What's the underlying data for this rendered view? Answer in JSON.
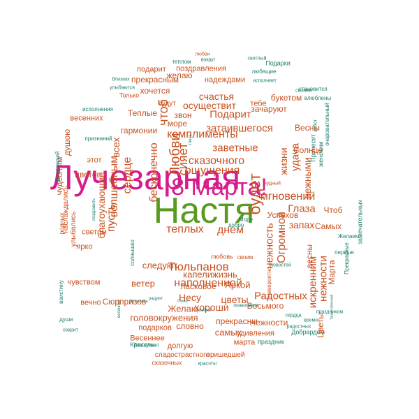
{
  "colors": {
    "orange": "#c8501e",
    "teal": "#1e7f6e",
    "magenta": "#d81b8c",
    "green": "#5a9a1e"
  },
  "cloud": {
    "words": [
      {
        "text": "Настя",
        "color": "green",
        "weight": 1.0
      },
      {
        "text": "Лучезарная",
        "color": "magenta",
        "weight": 0.92
      },
      {
        "text": "8 Марта!",
        "color": "magenta",
        "weight": 0.72
      },
      {
        "text": "Тюльпанов",
        "color": "orange",
        "weight": 0.4
      },
      {
        "text": "мгновений",
        "color": "orange",
        "weight": 0.38
      },
      {
        "text": "комплименты",
        "color": "orange",
        "weight": 0.36
      },
      {
        "text": "ощущения",
        "color": "orange",
        "weight": 0.36
      },
      {
        "text": "наполненной",
        "color": "orange",
        "weight": 0.34
      },
      {
        "text": "теплых",
        "color": "orange",
        "weight": 0.36
      },
      {
        "text": "днем",
        "color": "orange",
        "weight": 0.34
      },
      {
        "text": "сказочного",
        "color": "orange",
        "weight": 0.34
      },
      {
        "text": "заветные",
        "color": "orange",
        "weight": 0.34
      },
      {
        "text": "Подарит",
        "color": "orange",
        "weight": 0.32
      },
      {
        "text": "затаившегося",
        "color": "orange",
        "weight": 0.32
      },
      {
        "text": "осуществит",
        "color": "orange",
        "weight": 0.32
      },
      {
        "text": "счастья",
        "color": "orange",
        "weight": 0.32
      },
      {
        "text": "Глаза",
        "color": "orange",
        "weight": 0.32
      },
      {
        "text": "запах",
        "color": "orange",
        "weight": 0.3
      },
      {
        "text": "Радостных",
        "color": "orange",
        "weight": 0.32
      },
      {
        "text": "Несу",
        "color": "orange",
        "weight": 0.32
      },
      {
        "text": "цветы",
        "color": "orange",
        "weight": 0.32
      },
      {
        "text": "хороши",
        "color": "orange",
        "weight": 0.3
      },
      {
        "text": "Яркой",
        "color": "orange",
        "weight": 0.3
      },
      {
        "text": "ласковое",
        "color": "orange",
        "weight": 0.3
      },
      {
        "text": "капелижизнь",
        "color": "orange",
        "weight": 0.28
      },
      {
        "text": "ветер",
        "color": "orange",
        "weight": 0.28
      },
      {
        "text": "следуют",
        "color": "orange",
        "weight": 0.28
      },
      {
        "text": "Желаю",
        "color": "orange",
        "weight": 0.28
      },
      {
        "text": "головокружения",
        "color": "orange",
        "weight": 0.28
      },
      {
        "text": "Восьмого",
        "color": "orange",
        "weight": 0.26
      },
      {
        "text": "Нежности",
        "color": "orange",
        "weight": 0.26
      },
      {
        "text": "Сюрпризов",
        "color": "orange",
        "weight": 0.26
      },
      {
        "text": "удивления",
        "color": "orange",
        "weight": 0.24
      },
      {
        "text": "самых",
        "color": "orange",
        "weight": 0.24
      },
      {
        "text": "марта",
        "color": "orange",
        "weight": 0.22
      },
      {
        "text": "словно",
        "color": "orange",
        "weight": 0.24
      },
      {
        "text": "прекрасны",
        "color": "orange",
        "weight": 0.24
      },
      {
        "text": "подарков",
        "color": "orange",
        "weight": 0.22
      },
      {
        "text": "Весеннее",
        "color": "orange",
        "weight": 0.22
      },
      {
        "text": "долгую",
        "color": "orange",
        "weight": 0.22
      },
      {
        "text": "сладострастного",
        "color": "orange",
        "weight": 0.2
      },
      {
        "text": "пришедшей",
        "color": "orange",
        "weight": 0.2
      },
      {
        "text": "сказочных",
        "color": "orange",
        "weight": 0.18
      },
      {
        "text": "Красоты",
        "color": "teal",
        "weight": 0.18
      },
      {
        "text": "праздник",
        "color": "teal",
        "weight": 0.18
      },
      {
        "text": "Добрардом",
        "color": "teal",
        "weight": 0.16
      },
      {
        "text": "Самых",
        "color": "orange",
        "weight": 0.26
      },
      {
        "text": "Успехов",
        "color": "orange",
        "weight": 0.24
      },
      {
        "text": "Чтоб",
        "color": "orange",
        "weight": 0.28
      },
      {
        "text": "Весны",
        "color": "orange",
        "weight": 0.28
      },
      {
        "text": "Солнце",
        "color": "orange",
        "weight": 0.26
      },
      {
        "text": "букетом",
        "color": "orange",
        "weight": 0.28
      },
      {
        "text": "зачаруют",
        "color": "orange",
        "weight": 0.26
      },
      {
        "text": "тебе",
        "color": "orange",
        "weight": 0.24
      },
      {
        "text": "Теплые",
        "color": "orange",
        "weight": 0.28
      },
      {
        "text": "гармонии",
        "color": "orange",
        "weight": 0.28
      },
      {
        "text": "звон",
        "color": "orange",
        "weight": 0.28
      },
      {
        "text": "море",
        "color": "orange",
        "weight": 0.26
      },
      {
        "text": "хочется",
        "color": "orange",
        "weight": 0.26
      },
      {
        "text": "прекрасным",
        "color": "orange",
        "weight": 0.26
      },
      {
        "text": "желаю",
        "color": "orange",
        "weight": 0.26
      },
      {
        "text": "подарит",
        "color": "orange",
        "weight": 0.24
      },
      {
        "text": "поздравления",
        "color": "orange",
        "weight": 0.24
      },
      {
        "text": "надеждами",
        "color": "orange",
        "weight": 0.24
      },
      {
        "text": "будут",
        "color": "orange",
        "weight": 0.22
      },
      {
        "text": "весенних",
        "color": "orange",
        "weight": 0.24
      },
      {
        "text": "цветов",
        "color": "orange",
        "weight": 0.28
      },
      {
        "text": "этот",
        "color": "orange",
        "weight": 0.24
      },
      {
        "text": "ярко",
        "color": "orange",
        "weight": 0.26
      },
      {
        "text": "светом",
        "color": "orange",
        "weight": 0.24
      },
      {
        "text": "чувством",
        "color": "orange",
        "weight": 0.26
      },
      {
        "text": "вечно",
        "color": "orange",
        "weight": 0.24
      },
      {
        "text": "любовь",
        "color": "orange",
        "weight": 0.24
      },
      {
        "text": "своим",
        "color": "orange",
        "weight": 0.2
      },
      {
        "text": "чудный",
        "color": "orange",
        "weight": 0.2
      },
      {
        "text": "Только",
        "color": "orange",
        "weight": 0.18
      },
      {
        "text": "исполнения",
        "color": "teal",
        "weight": 0.18
      },
      {
        "text": "признаний",
        "color": "teal",
        "weight": 0.16
      },
      {
        "text": "теплом",
        "color": "teal",
        "weight": 0.14
      },
      {
        "text": "любви",
        "color": "orange",
        "weight": 0.2
      },
      {
        "text": "вокруг",
        "color": "teal",
        "weight": 0.16
      },
      {
        "text": "светлый",
        "color": "teal",
        "weight": 0.14
      },
      {
        "text": "любящие",
        "color": "teal",
        "weight": 0.14
      },
      {
        "text": "Подарки",
        "color": "teal",
        "weight": 0.14
      },
      {
        "text": "исполняет",
        "color": "teal",
        "weight": 0.14
      },
      {
        "text": "становится",
        "color": "teal",
        "weight": 0.16
      },
      {
        "text": "своими",
        "color": "teal",
        "weight": 0.14
      },
      {
        "text": "влюблены",
        "color": "teal",
        "weight": 0.16
      },
      {
        "text": "близких",
        "color": "teal",
        "weight": 0.14
      },
      {
        "text": "улыбаются",
        "color": "teal",
        "weight": 0.16
      },
      {
        "text": "Желаем",
        "color": "teal",
        "weight": 0.12
      },
      {
        "text": "первые",
        "color": "teal",
        "weight": 0.12
      },
      {
        "text": "время",
        "color": "teal",
        "weight": 0.14
      },
      {
        "text": "праздником",
        "color": "teal",
        "weight": 0.14
      },
      {
        "text": "новостей",
        "color": "teal",
        "weight": 0.14
      },
      {
        "text": "сердца",
        "color": "teal",
        "weight": 0.14
      },
      {
        "text": "радостных",
        "color": "teal",
        "weight": 0.12
      },
      {
        "text": "улыбки",
        "color": "teal",
        "weight": 0.12
      },
      {
        "text": "пожелания",
        "color": "teal",
        "weight": 0.1
      },
      {
        "text": "добро",
        "color": "teal",
        "weight": 0.12
      },
      {
        "text": "Море",
        "color": "teal",
        "weight": 0.14
      },
      {
        "text": "души",
        "color": "teal",
        "weight": 0.14
      },
      {
        "text": "озарит",
        "color": "teal",
        "weight": 0.14
      },
      {
        "text": "Купались",
        "color": "teal",
        "weight": 0.12
      },
      {
        "text": "Самые",
        "color": "teal",
        "weight": 0.12
      },
      {
        "text": "радуют",
        "color": "teal",
        "weight": 0.1
      },
      {
        "text": "благоухают",
        "color": "teal",
        "weight": 0.1
      },
      {
        "text": "красоты",
        "color": "teal",
        "weight": 0.12
      }
    ],
    "vertical_words": [
      {
        "text": "Любви",
        "color": "orange",
        "weight": 0.34
      },
      {
        "text": "сияет",
        "color": "orange",
        "weight": 0.32
      },
      {
        "text": "чтоб",
        "color": "orange",
        "weight": 0.3
      },
      {
        "text": "бесконечно",
        "color": "orange",
        "weight": 0.3
      },
      {
        "text": "волшебным",
        "color": "orange",
        "weight": 0.3
      },
      {
        "text": "сердце",
        "color": "orange",
        "weight": 0.3
      },
      {
        "text": "пусть",
        "color": "orange",
        "weight": 0.28
      },
      {
        "text": "будет",
        "color": "orange",
        "weight": 0.34
      },
      {
        "text": "нежность",
        "color": "orange",
        "weight": 0.32
      },
      {
        "text": "удача",
        "color": "orange",
        "weight": 0.32
      },
      {
        "text": "жизни",
        "color": "orange",
        "weight": 0.28
      },
      {
        "text": "нежными",
        "color": "orange",
        "weight": 0.28
      },
      {
        "text": "Огромной",
        "color": "orange",
        "weight": 0.32
      },
      {
        "text": "нежности",
        "color": "orange",
        "weight": 0.28
      },
      {
        "text": "искренним",
        "color": "orange",
        "weight": 0.28
      },
      {
        "text": "Марта",
        "color": "orange",
        "weight": 0.26
      },
      {
        "text": "весны",
        "color": "orange",
        "weight": 0.24
      },
      {
        "text": "Цветы",
        "color": "orange",
        "weight": 0.24
      },
      {
        "text": "Невероятно",
        "color": "orange",
        "weight": 0.2
      },
      {
        "text": "благоухающие",
        "color": "orange",
        "weight": 0.26
      },
      {
        "text": "всех",
        "color": "orange",
        "weight": 0.24
      },
      {
        "text": "солнышко",
        "color": "teal",
        "weight": 0.14
      },
      {
        "text": "улыбались",
        "color": "orange",
        "weight": 0.2
      },
      {
        "text": "наслаждались",
        "color": "orange",
        "weight": 0.2
      },
      {
        "text": "чудесным",
        "color": "orange",
        "weight": 0.2
      },
      {
        "text": "душою",
        "color": "orange",
        "weight": 0.2
      },
      {
        "text": "родных",
        "color": "orange",
        "weight": 0.18
      },
      {
        "text": "мартовский",
        "color": "teal",
        "weight": 0.16
      },
      {
        "text": "женским",
        "color": "teal",
        "weight": 0.14
      },
      {
        "text": "Принесет",
        "color": "teal",
        "weight": 0.14
      },
      {
        "text": "очаровательный",
        "color": "teal",
        "weight": 0.14
      },
      {
        "text": "замечательных",
        "color": "teal",
        "weight": 0.14
      },
      {
        "text": "Прекрасные",
        "color": "teal",
        "weight": 0.14
      },
      {
        "text": "Торжественный",
        "color": "teal",
        "weight": 0.1
      },
      {
        "text": "забот",
        "color": "teal",
        "weight": 0.12
      },
      {
        "text": "воистину",
        "color": "teal",
        "weight": 0.14
      },
      {
        "text": "весенние",
        "color": "teal",
        "weight": 0.1
      },
      {
        "text": "поздравить",
        "color": "teal",
        "weight": 0.1
      },
      {
        "text": "глаза",
        "color": "teal",
        "weight": 0.12
      }
    ]
  }
}
